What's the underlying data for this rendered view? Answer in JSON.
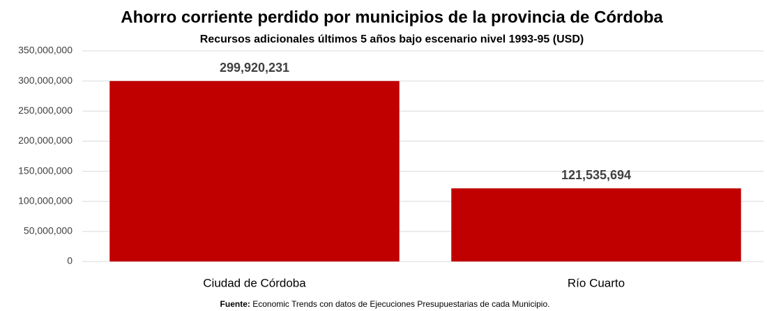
{
  "chart_data": {
    "type": "bar",
    "title": "Ahorro corriente perdido por municipios de la provincia de Córdoba",
    "subtitle": "Recursos adicionales últimos 5 años bajo escenario nivel 1993-95 (USD)",
    "categories": [
      "Ciudad de Córdoba",
      "Río Cuarto"
    ],
    "values": [
      299920231,
      121535694
    ],
    "value_labels": [
      "299,920,231",
      "121,535,694"
    ],
    "color": "#c00000",
    "ylim": [
      0,
      350000000
    ],
    "yticks": [
      0,
      {
        "value": 50000000,
        "label": "50,000,000"
      },
      {
        "value": 100000000,
        "label": "100,000,000"
      },
      {
        "value": 150000000,
        "label": "150,000,000"
      },
      {
        "value": 200000000,
        "label": "200,000,000"
      },
      {
        "value": 250000000,
        "label": "250,000,000"
      },
      {
        "value": 300000000,
        "label": "300,000,000"
      },
      {
        "value": 350000000,
        "label": "350,000,000"
      }
    ],
    "grid": true,
    "source_label": "Fuente:",
    "source_text": "Economic Trends con datos de Ejecuciones Presupuestarias de cada Municipio."
  }
}
